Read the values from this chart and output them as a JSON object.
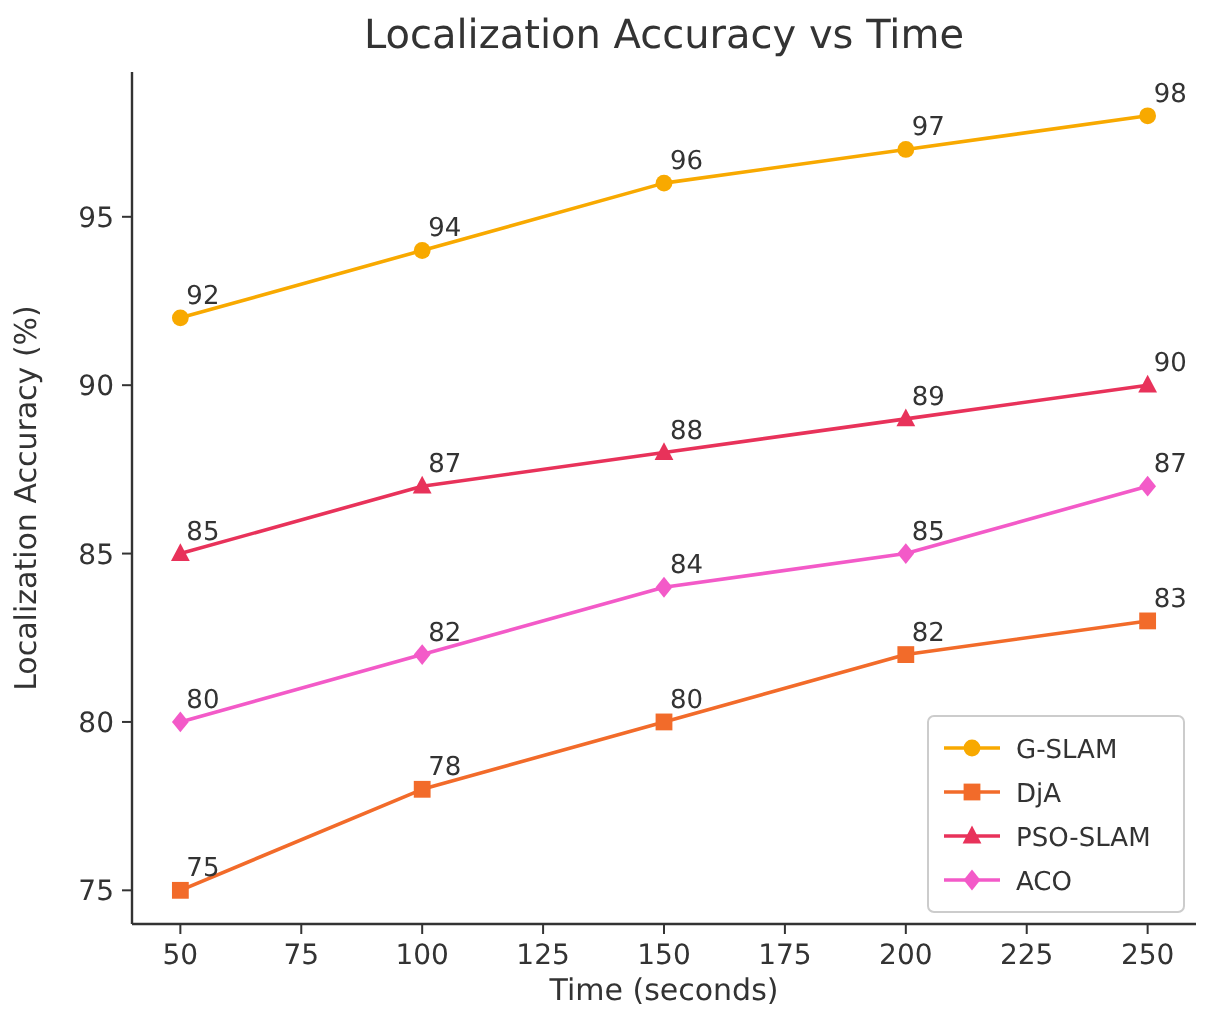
{
  "chart_data": {
    "type": "line",
    "title": "Localization Accuracy vs Time",
    "xlabel": "Time (seconds)",
    "ylabel": "Localization Accuracy (%)",
    "x": [
      50,
      100,
      150,
      200,
      250
    ],
    "series": [
      {
        "name": "G-SLAM",
        "color": "#f8a900",
        "marker": "circle",
        "values": [
          92,
          94,
          96,
          97,
          98
        ]
      },
      {
        "name": "DjA",
        "color": "#f26b2a",
        "marker": "square",
        "values": [
          75,
          78,
          80,
          82,
          83
        ]
      },
      {
        "name": "PSO-SLAM",
        "color": "#e8325a",
        "marker": "triangle",
        "values": [
          85,
          87,
          88,
          89,
          90
        ]
      },
      {
        "name": "ACO",
        "color": "#f35ac8",
        "marker": "diamond",
        "values": [
          80,
          82,
          84,
          85,
          87
        ]
      }
    ],
    "xlim": [
      40,
      260
    ],
    "xticks": [
      50,
      75,
      100,
      125,
      150,
      175,
      200,
      225,
      250
    ],
    "ylim": [
      74,
      99.3
    ],
    "yticks": [
      75,
      80,
      85,
      90,
      95
    ],
    "data_labels": true,
    "legend": "bottom right",
    "grid": false,
    "line_style": "solid"
  }
}
